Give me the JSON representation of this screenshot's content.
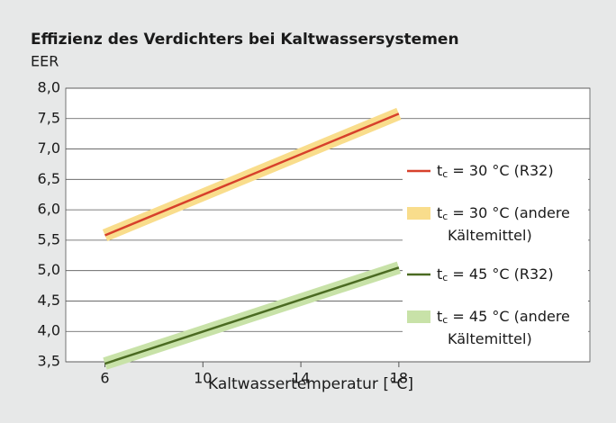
{
  "chart_data": {
    "type": "line",
    "title": "Effizienz des Verdichters bei Kaltwassersystemen",
    "ylabel": "EER",
    "xlabel": "Kaltwassertemperatur [°C]",
    "x": [
      6,
      18
    ],
    "series": [
      {
        "name": "tc = 30 °C (R32)",
        "color": "#d7402b",
        "style": "line",
        "values": [
          5.58,
          7.58
        ]
      },
      {
        "name": "tc = 30 °C (andere Kältemittel)",
        "color": "#f9dd8c",
        "style": "band",
        "values": [
          5.58,
          7.58
        ]
      },
      {
        "name": "tc = 45 °C (R32)",
        "color": "#4b6b22",
        "style": "line",
        "values": [
          3.47,
          5.05
        ]
      },
      {
        "name": "tc = 45 °C (andere Kältemittel)",
        "color": "#c8e2a8",
        "style": "band",
        "values": [
          3.47,
          5.05
        ]
      }
    ],
    "xlim": [
      4.4,
      25.8
    ],
    "xticks": [
      6,
      10,
      14,
      18
    ],
    "ylim": [
      3.5,
      8
    ],
    "yticks": [
      {
        "value": 3.5,
        "label": "3,5"
      },
      {
        "value": 4,
        "label": "4,0"
      },
      {
        "value": 4.5,
        "label": "4,5"
      },
      {
        "value": 5,
        "label": "5,0"
      },
      {
        "value": 5.5,
        "label": "5,5"
      },
      {
        "value": 6,
        "label": "6,0"
      },
      {
        "value": 6.5,
        "label": "6,5"
      },
      {
        "value": 7,
        "label": "7,0"
      },
      {
        "value": 7.5,
        "label": "7,5"
      },
      {
        "value": 8,
        "label": "8,0"
      }
    ],
    "grid": true,
    "legend": "right"
  }
}
